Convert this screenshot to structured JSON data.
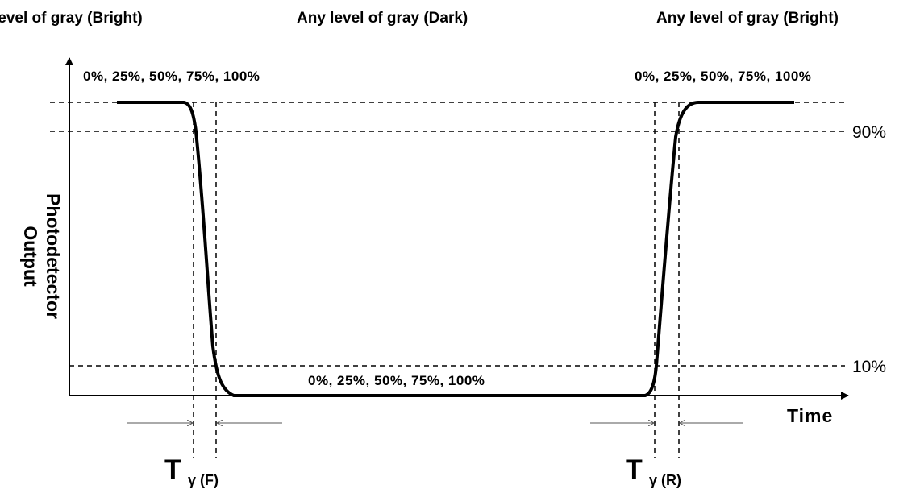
{
  "top_labels": {
    "left": "level of gray (Bright)",
    "center": "Any level of gray (Dark)",
    "right": "Any level of gray (Bright)"
  },
  "percent_labels": {
    "top_left": "0%, 25%, 50%, 75%, 100%",
    "top_right": "0%, 25%, 50%, 75%, 100%",
    "bottom_center": "0%, 25%, 50%, 75%, 100%"
  },
  "threshold_labels": {
    "high": "90%",
    "low": "10%"
  },
  "axes": {
    "y_label_line1": "Photodetector",
    "y_label_line2": "Output",
    "x_label": "Time"
  },
  "timing_labels": {
    "fall_main": "T",
    "fall_sub": "γ (F)",
    "rise_main": "T",
    "rise_sub": "γ (R)"
  },
  "colors": {
    "line": "#000000",
    "background": "#ffffff"
  }
}
